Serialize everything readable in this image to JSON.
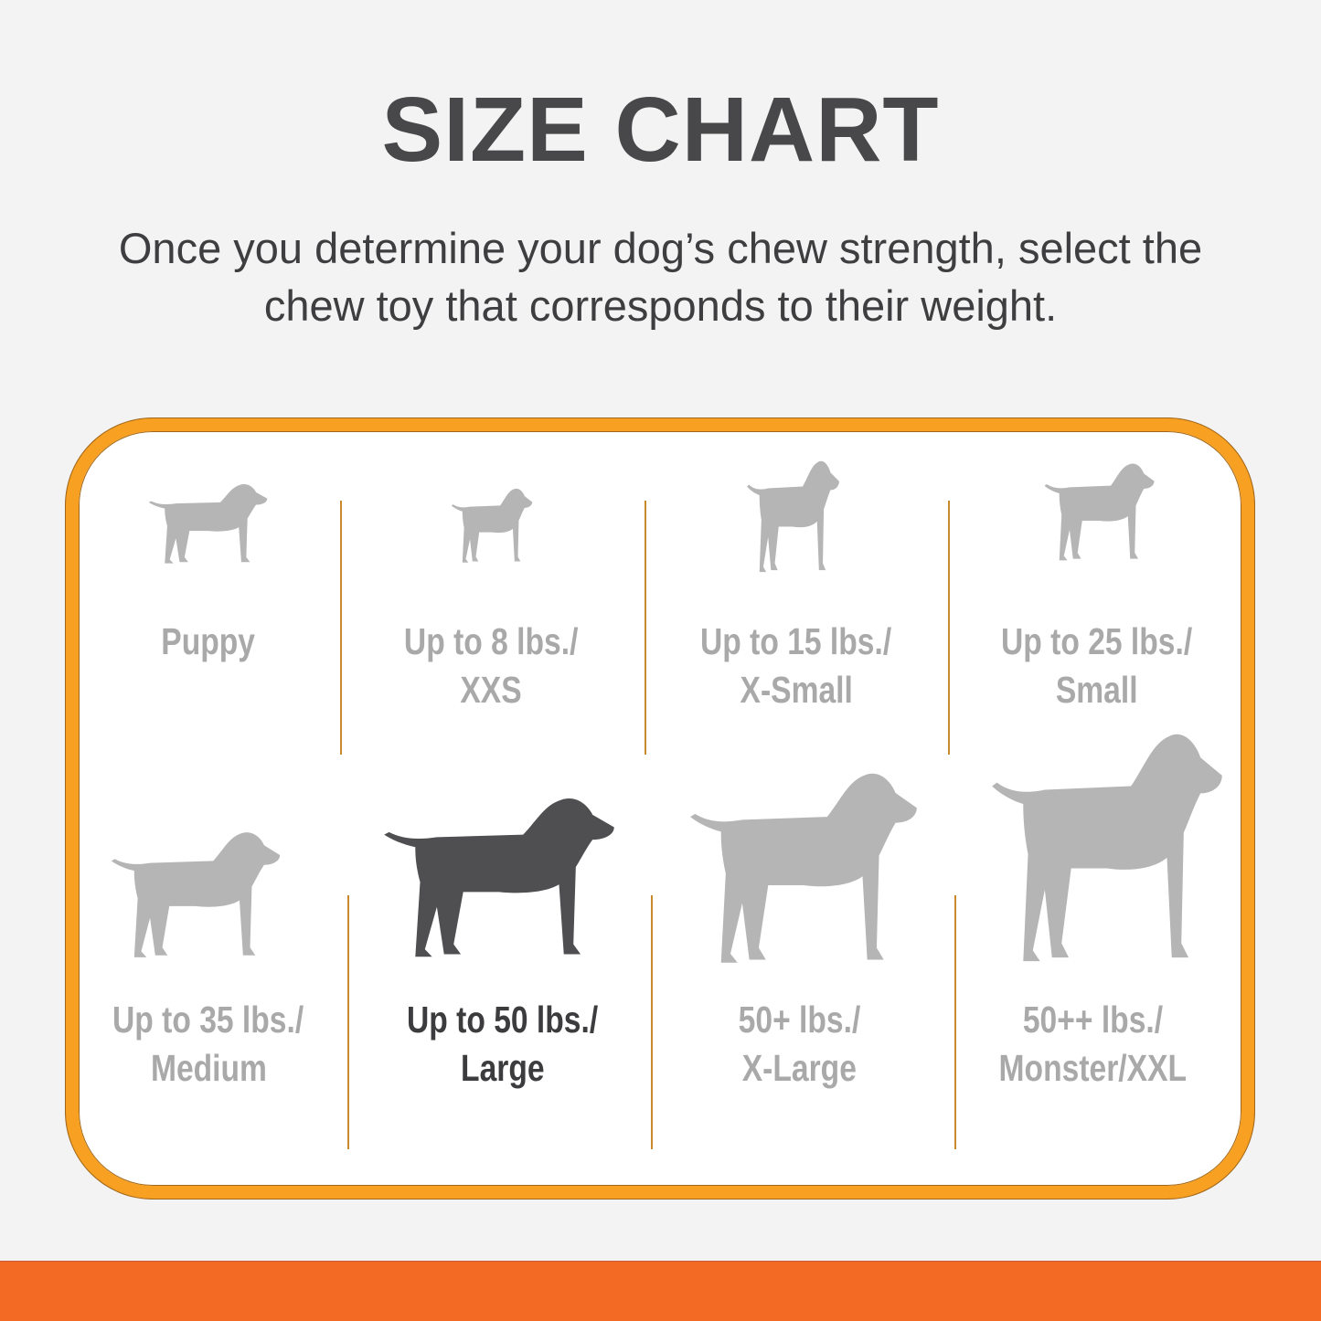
{
  "header": {
    "title": "SIZE CHART",
    "subtitle_line1": "Once you determine your dog’s chew strength, select the",
    "subtitle_line2": "chew toy that corresponds to their weight."
  },
  "colors": {
    "border": "#f7a021",
    "band": "#f26a24",
    "inactive": "#a9a9a9",
    "active": "#3c3c3e"
  },
  "sizes": [
    {
      "line1": "Puppy",
      "line2": "",
      "icon": "puppy-dog-icon",
      "active": false
    },
    {
      "line1": "Up to 8 lbs./",
      "line2": "XXS",
      "icon": "chihuahua-icon",
      "active": false
    },
    {
      "line1": "Up to 15 lbs./",
      "line2": "X-Small",
      "icon": "pinscher-icon",
      "active": false
    },
    {
      "line1": "Up to 25 lbs./",
      "line2": "Small",
      "icon": "terrier-icon",
      "active": false
    },
    {
      "line1": "Up to 35 lbs./",
      "line2": "Medium",
      "icon": "beagle-icon",
      "active": false
    },
    {
      "line1": "Up to 50 lbs./",
      "line2": "Large",
      "icon": "labrador-icon",
      "active": true
    },
    {
      "line1": "50+ lbs./",
      "line2": "X-Large",
      "icon": "shepherd-icon",
      "active": false
    },
    {
      "line1": "50++ lbs./",
      "line2": "Monster/XXL",
      "icon": "great-dane-icon",
      "active": false
    }
  ]
}
